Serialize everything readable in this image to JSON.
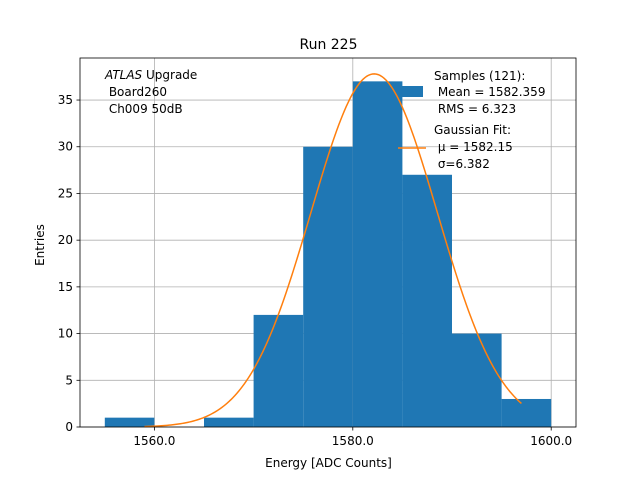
{
  "chart_data": {
    "type": "histogram",
    "title": "Run 225",
    "xlabel": "Energy [ADC Counts]",
    "ylabel": "Entries",
    "xlim": [
      1552.5,
      1602.5
    ],
    "ylim": [
      0,
      39.5
    ],
    "xticks": [
      1560.0,
      1580.0,
      1600.0
    ],
    "xtick_labels": [
      "1560.0",
      "1580.0",
      "1600.0"
    ],
    "yticks": [
      0,
      5,
      10,
      15,
      20,
      25,
      30,
      35
    ],
    "ytick_labels": [
      "0",
      "5",
      "10",
      "15",
      "20",
      "25",
      "30",
      "35"
    ],
    "grid": true,
    "bins": [
      {
        "x0": 1555,
        "x1": 1560,
        "count": 1
      },
      {
        "x0": 1560,
        "x1": 1565,
        "count": 0
      },
      {
        "x0": 1565,
        "x1": 1570,
        "count": 1
      },
      {
        "x0": 1570,
        "x1": 1575,
        "count": 12
      },
      {
        "x0": 1575,
        "x1": 1580,
        "count": 30
      },
      {
        "x0": 1580,
        "x1": 1585,
        "count": 37
      },
      {
        "x0": 1585,
        "x1": 1590,
        "count": 27
      },
      {
        "x0": 1590,
        "x1": 1595,
        "count": 10
      },
      {
        "x0": 1595,
        "x1": 1600,
        "count": 3
      }
    ],
    "fit": {
      "type": "gaussian",
      "mu": 1582.15,
      "sigma": 6.382,
      "amplitude": 37.8,
      "x_range": [
        1559,
        1597
      ]
    },
    "colors": {
      "bars": "#1f77b4",
      "fit": "#ff7f0e",
      "grid": "#b0b0b0"
    },
    "annotation": {
      "italic": "ATLAS",
      "line1_rest": " Upgrade",
      "line2": " Board260",
      "line3": " Ch009 50dB"
    },
    "legend": {
      "placement": "top-right",
      "samples_title": "Samples (121):",
      "samples_mean": " Mean = 1582.359",
      "samples_rms": " RMS = 6.323",
      "fit_title": "Gaussian Fit:",
      "fit_mu": " μ = 1582.15",
      "fit_sigma": " σ=6.382"
    }
  }
}
